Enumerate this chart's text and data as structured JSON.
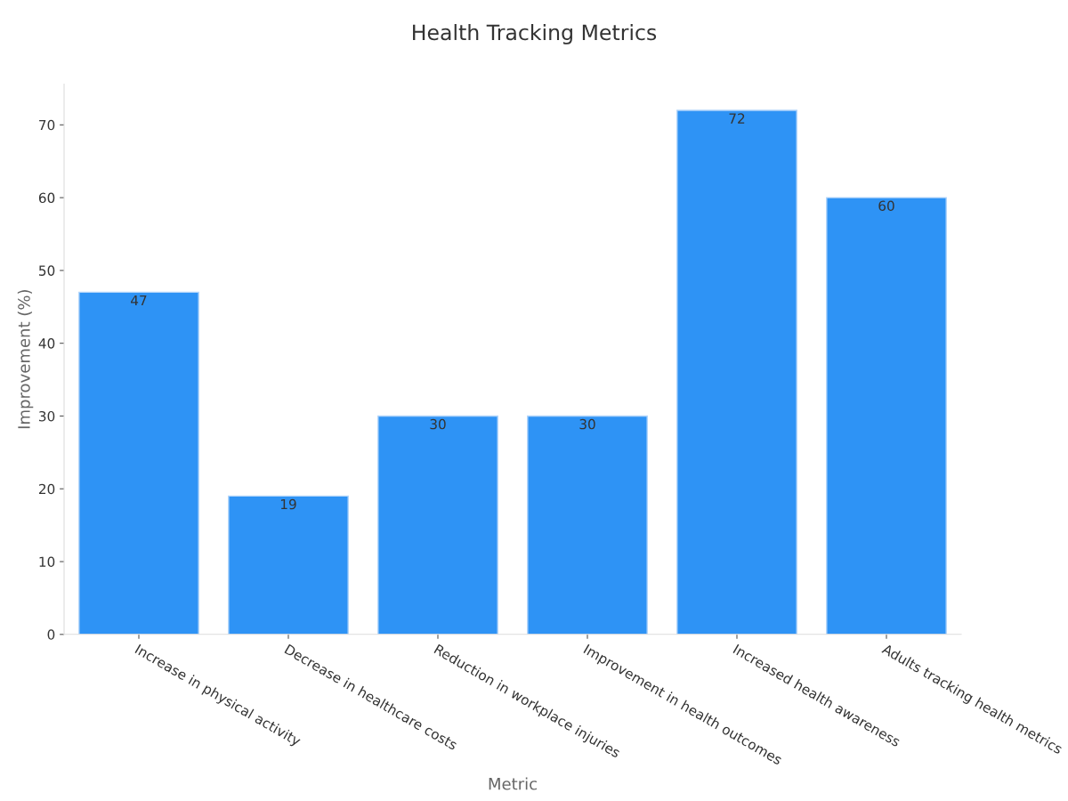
{
  "chart_data": {
    "type": "bar",
    "title": "Health Tracking Metrics",
    "xlabel": "Metric",
    "ylabel": "Improvement (%)",
    "categories": [
      "Increase in physical activity",
      "Decrease in healthcare costs",
      "Reduction in workplace injuries",
      "Improvement in health outcomes",
      "Increased health awareness",
      "Adults tracking health metrics"
    ],
    "values": [
      47,
      19,
      30,
      30,
      72,
      60
    ],
    "color": "#2e93f5",
    "ylim": [
      0,
      75.6
    ],
    "yticks": [
      0,
      10,
      20,
      30,
      40,
      50,
      60,
      70
    ],
    "grid": false,
    "data_labels": true
  }
}
